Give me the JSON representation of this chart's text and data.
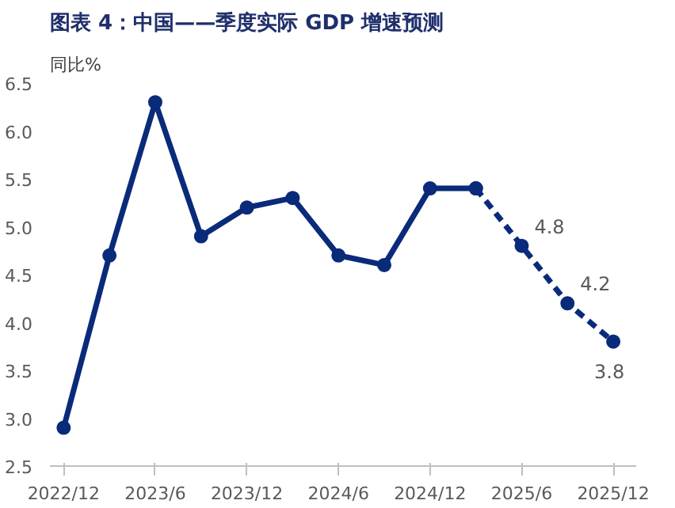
{
  "chart_data": {
    "type": "line",
    "title": "图表 4：中国——季度实际 GDP 增速预测",
    "ylabel": "同比%",
    "categories": [
      "2022/12",
      null,
      "2023/6",
      null,
      "2023/12",
      null,
      "2024/6",
      null,
      "2024/12",
      null,
      "2025/6",
      null,
      "2025/12"
    ],
    "series": [
      {
        "color": "#0a2a7a",
        "line_style": "solid",
        "values": [
          2.9,
          4.7,
          6.3,
          4.9,
          5.2,
          5.3,
          4.7,
          4.6,
          5.4,
          5.4,
          null,
          null,
          null
        ]
      },
      {
        "color": "#0a2a7a",
        "line_style": "dashed",
        "values": [
          null,
          null,
          null,
          null,
          null,
          null,
          null,
          null,
          null,
          5.4,
          4.8,
          4.2,
          3.8
        ],
        "value_labels": [
          null,
          null,
          null,
          null,
          null,
          null,
          null,
          null,
          null,
          null,
          "4.8",
          "4.2",
          "3.8"
        ]
      }
    ],
    "marker": "circle",
    "ylim": [
      2.5,
      6.5
    ],
    "yticks": [
      2.5,
      {
        "value": 3,
        "label": "3.0"
      },
      3.5,
      {
        "value": 4,
        "label": "4.0"
      },
      4.5,
      {
        "value": 5,
        "label": "5.0"
      },
      5.5,
      {
        "value": 6,
        "label": "6.0"
      },
      6.5
    ],
    "grid": false
  }
}
